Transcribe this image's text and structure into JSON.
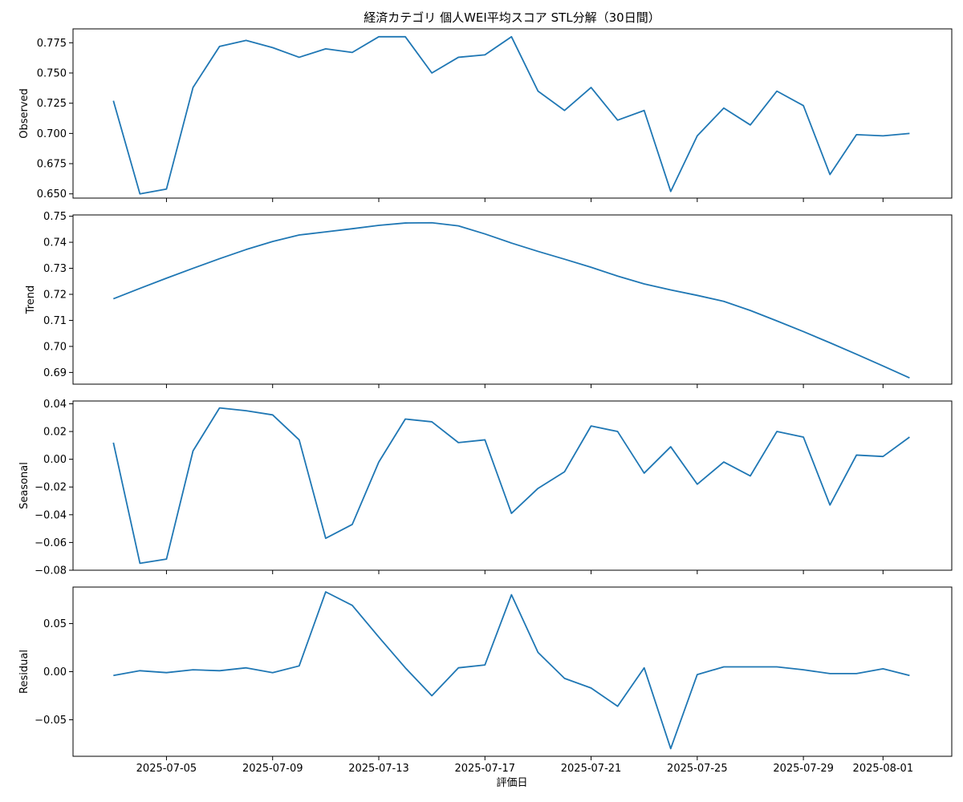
{
  "chart_data": {
    "type": "line",
    "title": "経済カテゴリ 個人WEI平均スコア STL分解（30日間）",
    "xlabel": "評価日",
    "x_tick_labels": [
      "2025-07-05",
      "2025-07-09",
      "2025-07-13",
      "2025-07-17",
      "2025-07-21",
      "2025-07-25",
      "2025-07-29",
      "2025-08-01"
    ],
    "x": [
      "2025-07-03",
      "2025-07-04",
      "2025-07-05",
      "2025-07-06",
      "2025-07-07",
      "2025-07-08",
      "2025-07-09",
      "2025-07-10",
      "2025-07-11",
      "2025-07-12",
      "2025-07-13",
      "2025-07-14",
      "2025-07-15",
      "2025-07-16",
      "2025-07-17",
      "2025-07-18",
      "2025-07-19",
      "2025-07-20",
      "2025-07-21",
      "2025-07-22",
      "2025-07-23",
      "2025-07-24",
      "2025-07-25",
      "2025-07-26",
      "2025-07-27",
      "2025-07-28",
      "2025-07-29",
      "2025-07-30",
      "2025-07-31",
      "2025-08-01",
      "2025-08-02"
    ],
    "line_color": "#1f77b4",
    "panels": [
      {
        "ylabel": "Observed",
        "ylim": [
          0.6465,
          0.7865
        ],
        "yticks": [
          0.65,
          0.675,
          0.7,
          0.725,
          0.75,
          0.775
        ],
        "ytick_labels": [
          "0.650",
          "0.675",
          "0.700",
          "0.725",
          "0.750",
          "0.775"
        ],
        "values": [
          0.727,
          0.65,
          0.654,
          0.738,
          0.772,
          0.777,
          0.771,
          0.763,
          0.77,
          0.767,
          0.78,
          0.78,
          0.75,
          0.763,
          0.765,
          0.78,
          0.735,
          0.719,
          0.738,
          0.711,
          0.719,
          0.652,
          0.698,
          0.721,
          0.707,
          0.735,
          0.723,
          0.666,
          0.699,
          0.698,
          0.7
        ]
      },
      {
        "ylabel": "Trend",
        "ylim": [
          0.6855,
          0.7505
        ],
        "yticks": [
          0.69,
          0.7,
          0.71,
          0.72,
          0.73,
          0.74,
          0.75
        ],
        "ytick_labels": [
          "0.69",
          "0.70",
          "0.71",
          "0.72",
          "0.73",
          "0.74",
          "0.75"
        ],
        "values": [
          0.7183,
          0.7223,
          0.7262,
          0.73,
          0.7337,
          0.7372,
          0.7403,
          0.7428,
          0.744,
          0.7452,
          0.7465,
          0.7474,
          0.7475,
          0.7463,
          0.7432,
          0.7397,
          0.7365,
          0.7335,
          0.7304,
          0.727,
          0.724,
          0.7217,
          0.7196,
          0.7173,
          0.7138,
          0.7098,
          0.7057,
          0.7014,
          0.697,
          0.6925,
          0.6879
        ]
      },
      {
        "ylabel": "Seasonal",
        "ylim": [
          -0.08,
          0.042
        ],
        "yticks": [
          -0.08,
          -0.06,
          -0.04,
          -0.02,
          0.0,
          0.02,
          0.04
        ],
        "ytick_labels": [
          "−0.08",
          "−0.06",
          "−0.04",
          "−0.02",
          "0.00",
          "0.02",
          "0.04"
        ],
        "values": [
          0.012,
          -0.075,
          -0.072,
          0.006,
          0.037,
          0.035,
          0.032,
          0.014,
          -0.057,
          -0.047,
          -0.002,
          0.029,
          0.027,
          0.012,
          0.014,
          -0.039,
          -0.021,
          -0.009,
          0.024,
          0.02,
          -0.01,
          0.009,
          -0.018,
          -0.002,
          -0.012,
          0.02,
          0.016,
          -0.033,
          0.003,
          0.002,
          0.016
        ]
      },
      {
        "ylabel": "Residual",
        "ylim": [
          -0.088,
          0.088
        ],
        "yticks": [
          -0.05,
          0.0,
          0.05
        ],
        "ytick_labels": [
          "−0.05",
          "0.00",
          "0.05"
        ],
        "values": [
          -0.004,
          0.001,
          -0.001,
          0.002,
          0.001,
          0.004,
          -0.001,
          0.006,
          0.083,
          0.069,
          0.036,
          0.004,
          -0.025,
          0.004,
          0.007,
          0.08,
          0.02,
          -0.007,
          -0.017,
          -0.036,
          0.004,
          -0.08,
          -0.003,
          0.005,
          0.005,
          0.005,
          0.002,
          -0.002,
          -0.002,
          0.003,
          -0.004
        ]
      }
    ]
  }
}
